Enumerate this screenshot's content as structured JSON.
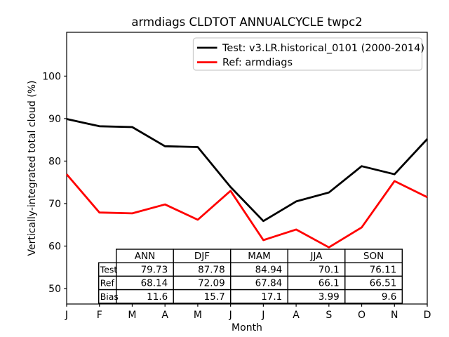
{
  "chart_data": {
    "type": "line",
    "title": "armdiags CLDTOT ANNUALCYCLE twpc2",
    "xlabel": "Month",
    "ylabel": "Vertically-integrated total cloud (%)",
    "x_tick_labels": [
      "J",
      "F",
      "M",
      "A",
      "M",
      "J",
      "J",
      "A",
      "S",
      "O",
      "N",
      "D"
    ],
    "y_ticks": [
      50,
      60,
      70,
      80,
      90,
      100
    ],
    "ylim": [
      46.3,
      110.3
    ],
    "grid": false,
    "frame": true,
    "legend": {
      "position": "upper right",
      "border_color": "#cccccc",
      "background": "#ffffff"
    },
    "series": [
      {
        "name": "Test: v3.LR.historical_0101 (2000-2014)",
        "color": "#000000",
        "values_estimated_from_pixels": true,
        "values": [
          89.9,
          88.2,
          88.0,
          83.5,
          83.3,
          73.9,
          65.9,
          70.5,
          72.6,
          78.8,
          76.9,
          85.2
        ]
      },
      {
        "name": "Ref: armdiags",
        "color": "#ff0000",
        "values_estimated_from_pixels": true,
        "values": [
          76.9,
          67.9,
          67.7,
          69.8,
          66.2,
          73.0,
          61.4,
          63.9,
          59.7,
          64.4,
          75.3,
          71.5
        ]
      }
    ],
    "stats_table": {
      "columns": [
        "ANN",
        "DJF",
        "MAM",
        "JJA",
        "SON"
      ],
      "rows": [
        {
          "label": "Test",
          "values": [
            "79.73",
            "87.78",
            "84.94",
            "70.1",
            "76.11"
          ]
        },
        {
          "label": "Ref",
          "values": [
            "68.14",
            "72.09",
            "67.84",
            "66.1",
            "66.51"
          ]
        },
        {
          "label": "Bias",
          "values": [
            "11.6",
            "15.7",
            "17.1",
            "3.99",
            "9.6"
          ]
        }
      ]
    }
  }
}
